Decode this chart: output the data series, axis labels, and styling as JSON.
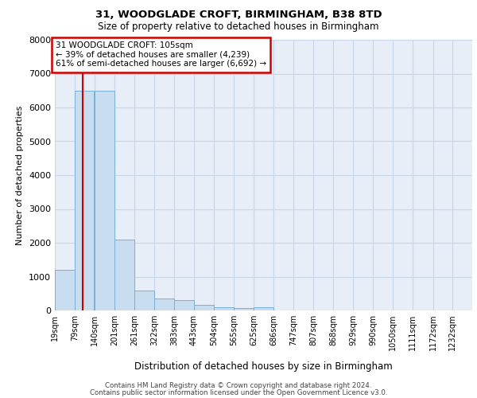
{
  "title_line1": "31, WOODGLADE CROFT, BIRMINGHAM, B38 8TD",
  "title_line2": "Size of property relative to detached houses in Birmingham",
  "xlabel": "Distribution of detached houses by size in Birmingham",
  "ylabel": "Number of detached properties",
  "property_size": 105,
  "pct_smaller": 39,
  "count_smaller": 4239,
  "pct_larger": 61,
  "count_larger": 6692,
  "bin_labels": [
    "19sqm",
    "79sqm",
    "140sqm",
    "201sqm",
    "261sqm",
    "322sqm",
    "383sqm",
    "443sqm",
    "504sqm",
    "565sqm",
    "625sqm",
    "686sqm",
    "747sqm",
    "807sqm",
    "868sqm",
    "929sqm",
    "990sqm",
    "1050sqm",
    "1111sqm",
    "1172sqm",
    "1232sqm"
  ],
  "bin_edges": [
    19,
    79,
    140,
    201,
    261,
    322,
    383,
    443,
    504,
    565,
    625,
    686,
    747,
    807,
    868,
    929,
    990,
    1050,
    1111,
    1172,
    1232
  ],
  "bar_heights": [
    1200,
    6500,
    6500,
    2100,
    600,
    350,
    300,
    175,
    100,
    70,
    100,
    0,
    0,
    0,
    0,
    0,
    0,
    0,
    0,
    0,
    0
  ],
  "bar_color": "#c8ddef",
  "bar_edge_color": "#7aafd4",
  "vline_color": "#cc0000",
  "annotation_box_color": "#cc0000",
  "grid_color": "#c8d4e8",
  "background_color": "#e8eef8",
  "ylim": [
    0,
    8000
  ],
  "yticks": [
    0,
    1000,
    2000,
    3000,
    4000,
    5000,
    6000,
    7000,
    8000
  ],
  "footer_line1": "Contains HM Land Registry data © Crown copyright and database right 2024.",
  "footer_line2": "Contains public sector information licensed under the Open Government Licence v3.0."
}
